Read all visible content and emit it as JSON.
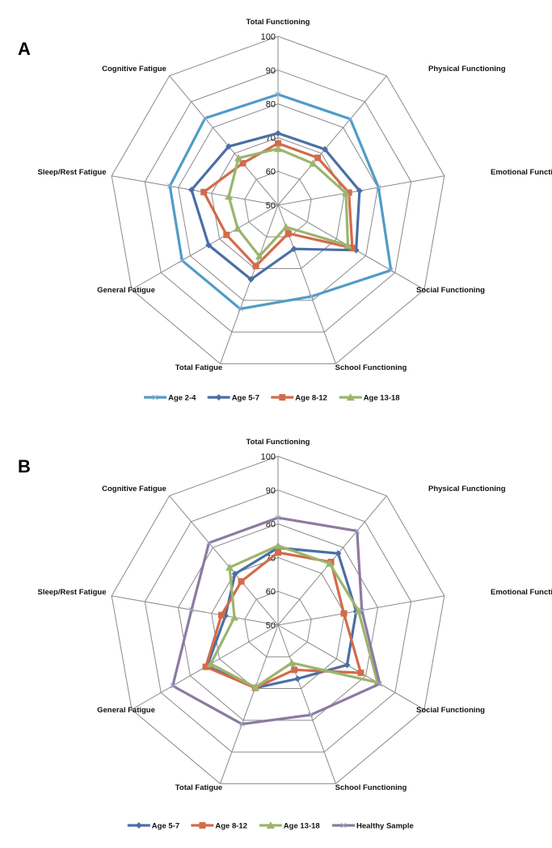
{
  "chart_data": [
    {
      "type": "radar",
      "panel": "A",
      "axes": [
        "Total Functioning",
        "Physical Functioning",
        "Emotional Functioning",
        "Social Functioning",
        "School Functioning",
        "Total Fatigue",
        "General Fatigue",
        "Sleep/Rest Fatigue",
        "Cognitive Fatigue"
      ],
      "rlim": [
        50,
        100
      ],
      "ticks": [
        "50",
        "60",
        "70",
        "80",
        "90",
        "100"
      ],
      "legend_position": "bottom",
      "series": [
        {
          "name": "Age 2-4",
          "color": "#4f9cc6",
          "marker": "x",
          "values": [
            82.8,
            83.3,
            80.2,
            88.6,
            78.8,
            82.7,
            82.8,
            82.5,
            83.6
          ]
        },
        {
          "name": "Age 5-7",
          "color": "#4a6fa5",
          "marker": "diamond",
          "values": [
            71.3,
            71.6,
            74.5,
            76.7,
            63.8,
            73.4,
            73.7,
            76.0,
            72.7
          ]
        },
        {
          "name": "Age 8-12",
          "color": "#d26b4b",
          "marker": "square",
          "values": [
            68.3,
            68.3,
            71.3,
            75.4,
            58.9,
            69.2,
            67.6,
            72.3,
            66.2
          ]
        },
        {
          "name": "Age 13-18",
          "color": "#9bb56d",
          "marker": "triangle",
          "values": [
            66.7,
            66.1,
            70.4,
            73.9,
            56.9,
            66.1,
            63.8,
            64.8,
            68.2
          ]
        }
      ]
    },
    {
      "type": "radar",
      "panel": "B",
      "axes": [
        "Total Functioning",
        "Physical Functioning",
        "Emotional Functioning",
        "Social Functioning",
        "School Functioning",
        "Total Fatigue",
        "General Fatigue",
        "Sleep/Rest Fatigue",
        "Cognitive Fatigue"
      ],
      "rlim": [
        50,
        100
      ],
      "ticks": [
        "50",
        "60",
        "70",
        "80",
        "90",
        "100"
      ],
      "legend_position": "bottom",
      "series": [
        {
          "name": "Age 5-7",
          "color": "#4a6fa5",
          "marker": "diamond",
          "values": [
            72.9,
            77.7,
            73.5,
            73.6,
            66.9,
            69.8,
            74.2,
            65.8,
            69.8
          ]
        },
        {
          "name": "Age 8-12",
          "color": "#d26b4b",
          "marker": "square",
          "values": [
            71.5,
            74.4,
            69.8,
            78.3,
            64.1,
            69.8,
            74.7,
            67.0,
            66.9
          ]
        },
        {
          "name": "Age 13-18",
          "color": "#9bb56d",
          "marker": "triangle",
          "values": [
            73.5,
            73.8,
            74.2,
            84.0,
            61.9,
            69.6,
            73.0,
            63.1,
            72.3
          ]
        },
        {
          "name": "Healthy Sample",
          "color": "#8c7aa0",
          "marker": "x",
          "values": [
            81.8,
            86.4,
            75.2,
            84.8,
            78.3,
            81.2,
            86.0,
            76.0,
            81.8
          ]
        }
      ]
    }
  ]
}
